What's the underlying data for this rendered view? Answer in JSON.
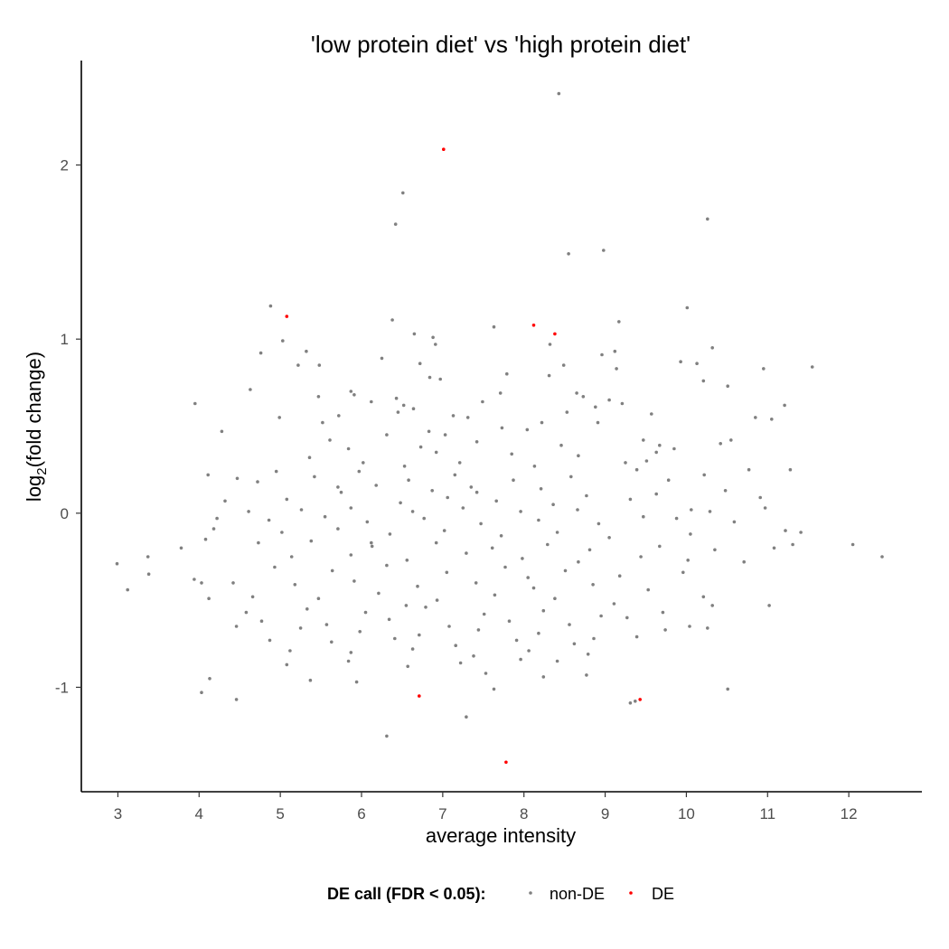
{
  "chart_data": {
    "type": "scatter",
    "title": "'low protein diet' vs 'high protein diet'",
    "xlabel": "average intensity",
    "ylabel_main": "log",
    "ylabel_sub": "2",
    "ylabel_rest": "(fold change)",
    "xlim": [
      2.55,
      12.9
    ],
    "ylim": [
      -1.6,
      2.6
    ],
    "x_ticks": [
      3,
      4,
      5,
      6,
      7,
      8,
      9,
      10,
      11,
      12
    ],
    "y_ticks": [
      -1,
      0,
      1,
      2
    ],
    "y_tick_labels": [
      "-1",
      "0",
      "1",
      "2"
    ],
    "grid": false,
    "legend": {
      "position": "bottom",
      "title": "DE call (FDR < 0.05):",
      "entries": [
        "non-DE",
        "DE"
      ]
    },
    "colors": {
      "non-DE": "#808080",
      "DE": "#ff0000"
    },
    "series": [
      {
        "name": "non-DE",
        "points": [
          [
            8.43,
            2.41
          ],
          [
            6.51,
            1.84
          ],
          [
            6.42,
            1.66
          ],
          [
            8.98,
            1.51
          ],
          [
            8.55,
            1.49
          ],
          [
            10.26,
            1.69
          ],
          [
            4.88,
            1.19
          ],
          [
            10.01,
            1.18
          ],
          [
            6.38,
            1.11
          ],
          [
            9.17,
            1.1
          ],
          [
            7.63,
            1.07
          ],
          [
            5.03,
            0.99
          ],
          [
            6.65,
            1.03
          ],
          [
            6.88,
            1.01
          ],
          [
            6.91,
            0.97
          ],
          [
            10.32,
            0.95
          ],
          [
            8.32,
            0.97
          ],
          [
            9.12,
            0.93
          ],
          [
            8.96,
            0.91
          ],
          [
            5.32,
            0.93
          ],
          [
            4.76,
            0.92
          ],
          [
            10.13,
            0.86
          ],
          [
            6.25,
            0.89
          ],
          [
            9.93,
            0.87
          ],
          [
            6.72,
            0.86
          ],
          [
            8.49,
            0.85
          ],
          [
            11.55,
            0.84
          ],
          [
            10.95,
            0.83
          ],
          [
            9.14,
            0.83
          ],
          [
            5.22,
            0.85
          ],
          [
            5.48,
            0.85
          ],
          [
            6.84,
            0.78
          ],
          [
            7.79,
            0.8
          ],
          [
            6.97,
            0.77
          ],
          [
            8.31,
            0.79
          ],
          [
            10.21,
            0.76
          ],
          [
            10.51,
            0.73
          ],
          [
            4.63,
            0.71
          ],
          [
            6.12,
            0.64
          ],
          [
            5.87,
            0.7
          ],
          [
            5.91,
            0.68
          ],
          [
            8.65,
            0.69
          ],
          [
            7.71,
            0.69
          ],
          [
            5.47,
            0.67
          ],
          [
            6.43,
            0.66
          ],
          [
            8.73,
            0.67
          ],
          [
            9.05,
            0.65
          ],
          [
            9.21,
            0.63
          ],
          [
            3.95,
            0.63
          ],
          [
            11.21,
            0.62
          ],
          [
            8.88,
            0.61
          ],
          [
            7.49,
            0.64
          ],
          [
            6.52,
            0.62
          ],
          [
            6.64,
            0.6
          ],
          [
            5.72,
            0.56
          ],
          [
            6.45,
            0.58
          ],
          [
            7.13,
            0.56
          ],
          [
            7.31,
            0.55
          ],
          [
            8.53,
            0.58
          ],
          [
            9.57,
            0.57
          ],
          [
            10.85,
            0.55
          ],
          [
            11.05,
            0.54
          ],
          [
            5.52,
            0.52
          ],
          [
            4.99,
            0.55
          ],
          [
            8.91,
            0.52
          ],
          [
            8.22,
            0.52
          ],
          [
            6.83,
            0.47
          ],
          [
            7.73,
            0.49
          ],
          [
            8.04,
            0.48
          ],
          [
            9.47,
            0.42
          ],
          [
            10.55,
            0.42
          ],
          [
            9.67,
            0.39
          ],
          [
            9.85,
            0.37
          ],
          [
            10.42,
            0.4
          ],
          [
            4.28,
            0.47
          ],
          [
            5.61,
            0.42
          ],
          [
            6.31,
            0.45
          ],
          [
            7.03,
            0.45
          ],
          [
            7.42,
            0.41
          ],
          [
            8.46,
            0.39
          ],
          [
            9.63,
            0.35
          ],
          [
            10.77,
            0.25
          ],
          [
            5.84,
            0.37
          ],
          [
            6.73,
            0.38
          ],
          [
            7.85,
            0.34
          ],
          [
            8.67,
            0.33
          ],
          [
            9.25,
            0.29
          ],
          [
            5.36,
            0.32
          ],
          [
            6.02,
            0.29
          ],
          [
            6.53,
            0.27
          ],
          [
            7.21,
            0.29
          ],
          [
            8.13,
            0.27
          ],
          [
            9.39,
            0.25
          ],
          [
            10.22,
            0.22
          ],
          [
            11.28,
            0.25
          ],
          [
            4.11,
            0.22
          ],
          [
            4.47,
            0.2
          ],
          [
            4.95,
            0.24
          ],
          [
            5.42,
            0.21
          ],
          [
            5.97,
            0.24
          ],
          [
            6.58,
            0.19
          ],
          [
            7.15,
            0.22
          ],
          [
            7.87,
            0.19
          ],
          [
            8.58,
            0.21
          ],
          [
            9.78,
            0.19
          ],
          [
            10.48,
            0.13
          ],
          [
            4.72,
            0.18
          ],
          [
            5.71,
            0.15
          ],
          [
            6.18,
            0.16
          ],
          [
            6.87,
            0.13
          ],
          [
            7.42,
            0.12
          ],
          [
            8.21,
            0.14
          ],
          [
            8.77,
            0.1
          ],
          [
            9.63,
            0.11
          ],
          [
            10.91,
            0.09
          ],
          [
            4.32,
            0.07
          ],
          [
            5.08,
            0.08
          ],
          [
            6.48,
            0.06
          ],
          [
            7.06,
            0.09
          ],
          [
            7.66,
            0.07
          ],
          [
            8.36,
            0.05
          ],
          [
            9.31,
            0.08
          ],
          [
            10.06,
            0.02
          ],
          [
            10.97,
            0.03
          ],
          [
            4.61,
            0.01
          ],
          [
            5.26,
            0.02
          ],
          [
            5.87,
            0.03
          ],
          [
            6.63,
            0.01
          ],
          [
            7.25,
            0.03
          ],
          [
            7.96,
            0.01
          ],
          [
            8.66,
            0.02
          ],
          [
            9.47,
            -0.02
          ],
          [
            10.29,
            0.01
          ],
          [
            4.22,
            -0.03
          ],
          [
            4.86,
            -0.04
          ],
          [
            5.55,
            -0.02
          ],
          [
            6.07,
            -0.05
          ],
          [
            6.77,
            -0.03
          ],
          [
            7.47,
            -0.06
          ],
          [
            8.18,
            -0.04
          ],
          [
            8.92,
            -0.06
          ],
          [
            9.88,
            -0.03
          ],
          [
            10.59,
            -0.05
          ],
          [
            4.18,
            -0.09
          ],
          [
            5.02,
            -0.11
          ],
          [
            5.71,
            -0.09
          ],
          [
            6.35,
            -0.12
          ],
          [
            7.02,
            -0.1
          ],
          [
            7.72,
            -0.13
          ],
          [
            8.41,
            -0.11
          ],
          [
            9.05,
            -0.14
          ],
          [
            10.05,
            -0.12
          ],
          [
            11.22,
            -0.1
          ],
          [
            11.41,
            -0.11
          ],
          [
            4.08,
            -0.15
          ],
          [
            4.73,
            -0.17
          ],
          [
            5.38,
            -0.16
          ],
          [
            6.13,
            -0.19
          ],
          [
            6.92,
            -0.17
          ],
          [
            7.61,
            -0.2
          ],
          [
            8.29,
            -0.18
          ],
          [
            8.81,
            -0.21
          ],
          [
            9.67,
            -0.19
          ],
          [
            10.35,
            -0.21
          ],
          [
            11.08,
            -0.2
          ],
          [
            11.31,
            -0.18
          ],
          [
            3.78,
            -0.2
          ],
          [
            12.05,
            -0.18
          ],
          [
            3.37,
            -0.25
          ],
          [
            5.14,
            -0.25
          ],
          [
            5.87,
            -0.24
          ],
          [
            6.56,
            -0.27
          ],
          [
            7.29,
            -0.23
          ],
          [
            7.98,
            -0.26
          ],
          [
            8.67,
            -0.28
          ],
          [
            9.44,
            -0.25
          ],
          [
            10.02,
            -0.27
          ],
          [
            10.71,
            -0.28
          ],
          [
            12.41,
            -0.25
          ],
          [
            2.99,
            -0.29
          ],
          [
            4.93,
            -0.31
          ],
          [
            5.64,
            -0.33
          ],
          [
            6.31,
            -0.3
          ],
          [
            7.05,
            -0.34
          ],
          [
            7.77,
            -0.31
          ],
          [
            8.51,
            -0.33
          ],
          [
            9.18,
            -0.36
          ],
          [
            9.96,
            -0.34
          ],
          [
            3.38,
            -0.35
          ],
          [
            3.94,
            -0.38
          ],
          [
            4.42,
            -0.4
          ],
          [
            5.18,
            -0.41
          ],
          [
            5.91,
            -0.39
          ],
          [
            6.69,
            -0.42
          ],
          [
            7.41,
            -0.4
          ],
          [
            8.12,
            -0.43
          ],
          [
            8.85,
            -0.41
          ],
          [
            9.53,
            -0.44
          ],
          [
            4.03,
            -0.4
          ],
          [
            3.12,
            -0.44
          ],
          [
            4.66,
            -0.48
          ],
          [
            5.47,
            -0.49
          ],
          [
            6.21,
            -0.46
          ],
          [
            6.93,
            -0.5
          ],
          [
            7.64,
            -0.47
          ],
          [
            8.38,
            -0.49
          ],
          [
            9.11,
            -0.52
          ],
          [
            10.21,
            -0.48
          ],
          [
            11.02,
            -0.53
          ],
          [
            4.12,
            -0.49
          ],
          [
            4.58,
            -0.57
          ],
          [
            5.33,
            -0.55
          ],
          [
            6.05,
            -0.57
          ],
          [
            6.79,
            -0.54
          ],
          [
            7.51,
            -0.58
          ],
          [
            8.24,
            -0.56
          ],
          [
            8.95,
            -0.59
          ],
          [
            9.71,
            -0.57
          ],
          [
            10.32,
            -0.53
          ],
          [
            4.77,
            -0.62
          ],
          [
            5.57,
            -0.64
          ],
          [
            6.34,
            -0.61
          ],
          [
            7.08,
            -0.65
          ],
          [
            7.82,
            -0.62
          ],
          [
            8.56,
            -0.64
          ],
          [
            9.27,
            -0.6
          ],
          [
            10.04,
            -0.65
          ],
          [
            4.46,
            -0.65
          ],
          [
            5.25,
            -0.66
          ],
          [
            5.98,
            -0.68
          ],
          [
            6.71,
            -0.7
          ],
          [
            7.44,
            -0.67
          ],
          [
            8.18,
            -0.69
          ],
          [
            8.86,
            -0.72
          ],
          [
            9.74,
            -0.67
          ],
          [
            10.26,
            -0.66
          ],
          [
            4.87,
            -0.73
          ],
          [
            5.63,
            -0.74
          ],
          [
            6.41,
            -0.72
          ],
          [
            7.16,
            -0.76
          ],
          [
            7.91,
            -0.73
          ],
          [
            8.62,
            -0.75
          ],
          [
            9.39,
            -0.71
          ],
          [
            5.12,
            -0.79
          ],
          [
            5.87,
            -0.8
          ],
          [
            6.63,
            -0.78
          ],
          [
            7.38,
            -0.82
          ],
          [
            8.06,
            -0.79
          ],
          [
            8.79,
            -0.81
          ],
          [
            5.08,
            -0.87
          ],
          [
            5.84,
            -0.85
          ],
          [
            6.57,
            -0.88
          ],
          [
            7.22,
            -0.86
          ],
          [
            7.96,
            -0.84
          ],
          [
            8.41,
            -0.85
          ],
          [
            4.13,
            -0.95
          ],
          [
            5.37,
            -0.96
          ],
          [
            5.94,
            -0.97
          ],
          [
            7.53,
            -0.92
          ],
          [
            8.24,
            -0.94
          ],
          [
            8.77,
            -0.93
          ],
          [
            4.03,
            -1.03
          ],
          [
            4.46,
            -1.07
          ],
          [
            7.63,
            -1.01
          ],
          [
            9.31,
            -1.09
          ],
          [
            9.37,
            -1.08
          ],
          [
            10.51,
            -1.01
          ],
          [
            7.29,
            -1.17
          ],
          [
            6.31,
            -1.28
          ],
          [
            6.55,
            -0.53
          ],
          [
            6.12,
            -0.17
          ],
          [
            5.75,
            0.12
          ],
          [
            7.35,
            0.15
          ],
          [
            8.05,
            -0.37
          ],
          [
            9.51,
            0.3
          ],
          [
            6.92,
            0.35
          ]
        ]
      },
      {
        "name": "DE",
        "points": [
          [
            7.01,
            2.09
          ],
          [
            5.08,
            1.13
          ],
          [
            8.12,
            1.08
          ],
          [
            8.38,
            1.03
          ],
          [
            6.71,
            -1.05
          ],
          [
            9.43,
            -1.07
          ],
          [
            7.78,
            -1.43
          ]
        ]
      }
    ]
  }
}
